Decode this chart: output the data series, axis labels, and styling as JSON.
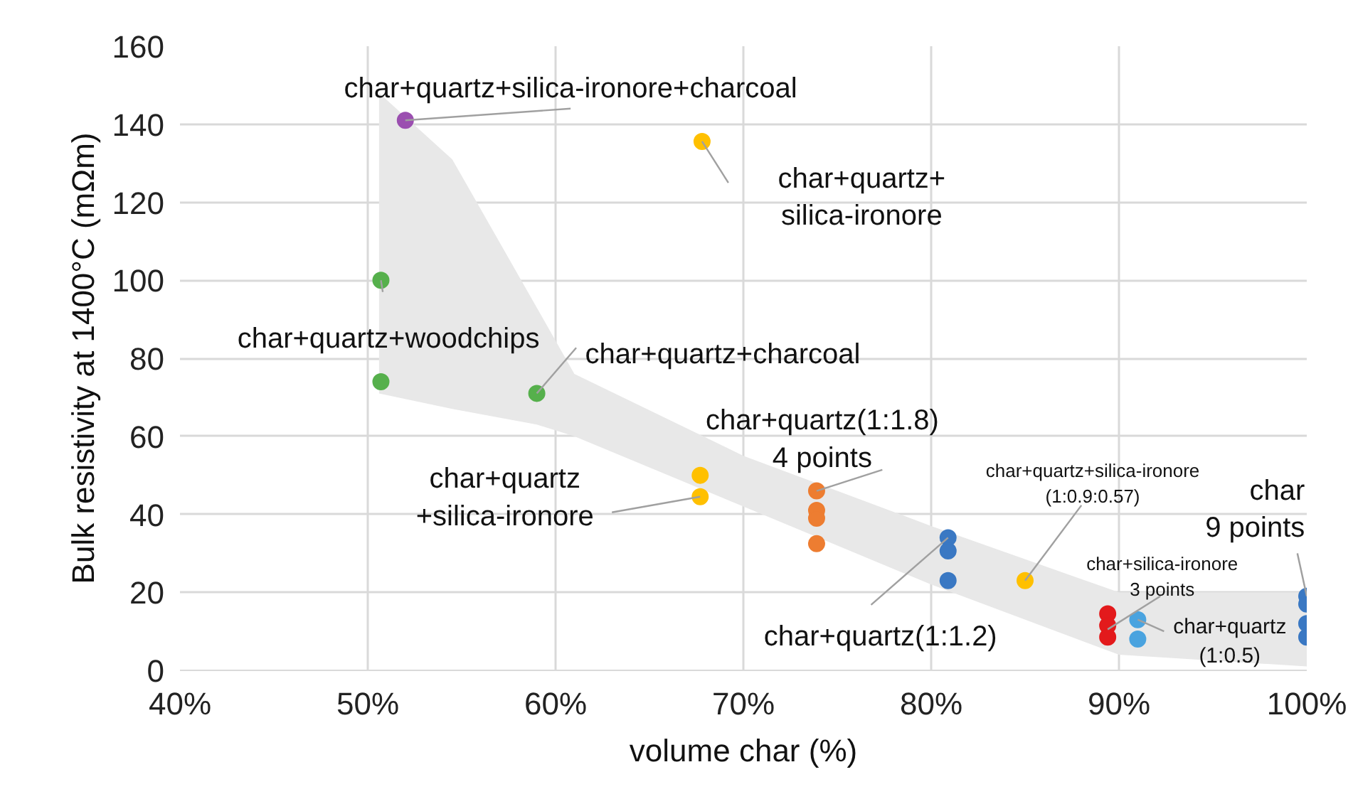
{
  "chart_data": {
    "type": "scatter",
    "xlabel": "volume char (%)",
    "ylabel": "Bulk resistivity at 1400°C (mΩm)",
    "xlim": [
      40,
      100
    ],
    "ylim": [
      0,
      160
    ],
    "xticks": [
      {
        "value": 40,
        "label": "40%"
      },
      {
        "value": 50,
        "label": "50%"
      },
      {
        "value": 60,
        "label": "60%"
      },
      {
        "value": 70,
        "label": "70%"
      },
      {
        "value": 80,
        "label": "80%"
      },
      {
        "value": 90,
        "label": "90%"
      },
      {
        "value": 100,
        "label": "100%"
      }
    ],
    "yticks": [
      0,
      20,
      40,
      60,
      80,
      100,
      120,
      140,
      160
    ],
    "grid": true,
    "marker": "circle",
    "series": [
      {
        "type": "area",
        "color": "#e8e8e8",
        "values": [
          null,
          null,
          null,
          null,
          null,
          null,
          null,
          null
        ],
        "x": [
          50.6,
          54.5,
          59,
          61,
          70,
          80,
          90,
          100
        ],
        "lower": [
          71,
          67,
          63,
          60,
          42,
          22,
          4,
          1
        ],
        "upper": [
          148,
          131,
          93,
          76,
          55,
          37,
          20,
          20
        ]
      },
      {
        "color": "#9b4fb0",
        "x": [
          52
        ],
        "values": [
          141
        ]
      },
      {
        "color": "#ffc000",
        "x": [
          67.8,
          67.7,
          67.7,
          85
        ],
        "values": [
          135.6,
          50,
          44.5,
          23
        ]
      },
      {
        "color": "#56b04c",
        "x": [
          50.7,
          50.7,
          59
        ],
        "values": [
          100,
          74,
          71
        ]
      },
      {
        "color": "#ed7d31",
        "x": [
          73.9,
          73.9,
          73.9,
          73.9
        ],
        "values": [
          46,
          41,
          39,
          32.5
        ]
      },
      {
        "color": "#3a78c3",
        "x": [
          80.9,
          80.9,
          80.9,
          100,
          100,
          100,
          100
        ],
        "values": [
          34,
          30.6,
          23,
          19,
          17,
          12,
          8.5
        ]
      },
      {
        "color": "#e31a1c",
        "x": [
          89.4,
          89.4,
          89.4
        ],
        "values": [
          14.5,
          11.5,
          8.5
        ]
      },
      {
        "color": "#4aa3df",
        "x": [
          91,
          91
        ],
        "values": [
          13,
          8
        ]
      }
    ],
    "annotations": [
      {
        "text": "char+quartz+silica-ironore+charcoal",
        "x": 52,
        "y": 141
      },
      {
        "text": "char+quartz+\nsilica-ironore",
        "x": 67.8,
        "y": 135.6
      },
      {
        "text": "char+quartz+woodchips",
        "x": 50.7,
        "y": 100
      },
      {
        "text": "char+quartz+charcoal",
        "x": 59,
        "y": 71
      },
      {
        "text": "char+quartz\n+silica-ironore",
        "x": 67.7,
        "y": 44.5
      },
      {
        "text": "char+quartz(1:1.8)\n4 points",
        "x": 73.9,
        "y": 46
      },
      {
        "text": "char+quartz+silica-ironore\n(1:0.9:0.57)",
        "x": 85,
        "y": 23
      },
      {
        "text": "char+quartz(1:1.2)",
        "x": 80.9,
        "y": 34
      },
      {
        "text": "char+silica-ironore\n3 points",
        "x": 89.4,
        "y": 10.5
      },
      {
        "text": "char\n9 points",
        "x": 100,
        "y": 19
      },
      {
        "text": "char+quartz\n(1:0.5)",
        "x": 91,
        "y": 13
      }
    ]
  }
}
